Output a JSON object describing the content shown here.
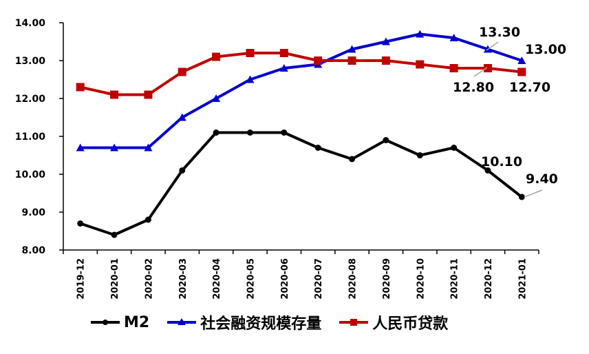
{
  "chart_data": {
    "type": "line",
    "title": "",
    "xlabel": "",
    "ylabel": "",
    "ylim": [
      8.0,
      14.0
    ],
    "y_ticks": [
      "8.00",
      "9.00",
      "10.00",
      "11.00",
      "12.00",
      "13.00",
      "14.00"
    ],
    "grid": false,
    "legend_position": "bottom",
    "categories": [
      "2019-12",
      "2020-01",
      "2020-02",
      "2020-03",
      "2020-04",
      "2020-05",
      "2020-06",
      "2020-07",
      "2020-08",
      "2020-09",
      "2020-10",
      "2020-11",
      "2020-12",
      "2021-01"
    ],
    "series": [
      {
        "name": "M2",
        "color": "#000000",
        "marker": "circle",
        "values": [
          8.7,
          8.4,
          8.8,
          10.1,
          11.1,
          11.1,
          11.1,
          10.7,
          10.4,
          10.9,
          10.5,
          10.7,
          10.1,
          9.4
        ]
      },
      {
        "name": "社会融资规模存量",
        "color": "#0000CC",
        "marker": "triangle",
        "values": [
          10.7,
          10.7,
          10.7,
          11.5,
          12.0,
          12.5,
          12.8,
          12.9,
          13.3,
          13.5,
          13.7,
          13.6,
          13.3,
          13.0
        ]
      },
      {
        "name": "人民币贷款",
        "color": "#C00000",
        "marker": "square",
        "values": [
          12.3,
          12.1,
          12.1,
          12.7,
          13.1,
          13.2,
          13.2,
          13.0,
          13.0,
          13.0,
          12.9,
          12.8,
          12.8,
          12.7
        ]
      }
    ],
    "annotations": [
      {
        "series": "社会融资规模存量",
        "category": "2020-12",
        "text": "13.30"
      },
      {
        "series": "社会融资规模存量",
        "category": "2021-01",
        "text": "13.00"
      },
      {
        "series": "人民币贷款",
        "category": "2020-12",
        "text": "12.80"
      },
      {
        "series": "人民币贷款",
        "category": "2021-01",
        "text": "12.70"
      },
      {
        "series": "M2",
        "category": "2020-12",
        "text": "10.10"
      },
      {
        "series": "M2",
        "category": "2021-01",
        "text": "9.40"
      }
    ]
  },
  "legend": {
    "m2": "M2",
    "tsf": "社会融资规模存量",
    "loans": "人民币贷款"
  }
}
